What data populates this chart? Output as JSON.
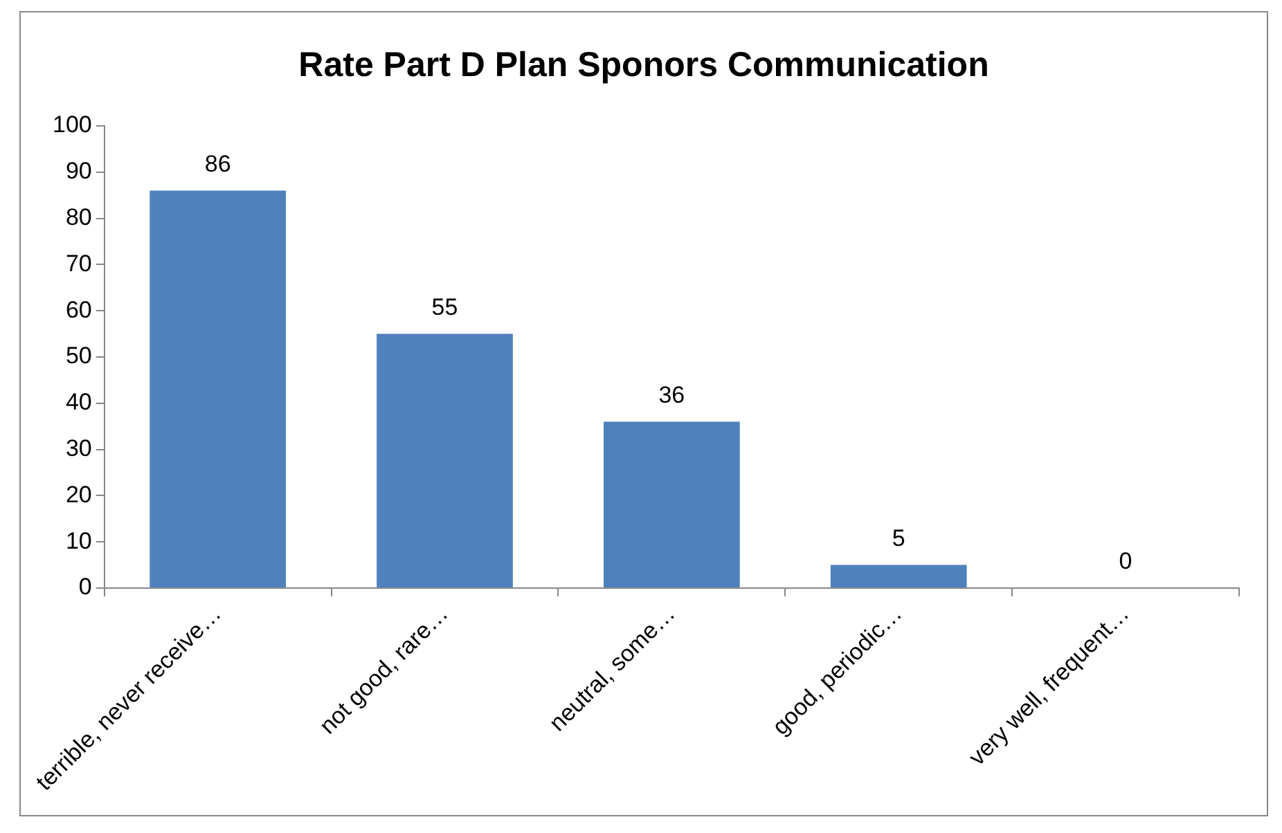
{
  "chart_data": {
    "type": "bar",
    "title": "Rate Part D Plan Sponors Communication",
    "categories": [
      "terrible, never receive…",
      "not good, rare…",
      "neutral, some…",
      "good, periodic…",
      "very well, frequent…"
    ],
    "values": [
      86,
      55,
      36,
      5,
      0
    ],
    "color": "#4f81bd",
    "ylim": [
      0,
      100
    ],
    "yticks": [
      0,
      10,
      20,
      30,
      40,
      50,
      60,
      70,
      80,
      90,
      100
    ],
    "grid": false,
    "legend": false,
    "data_labels": true
  }
}
